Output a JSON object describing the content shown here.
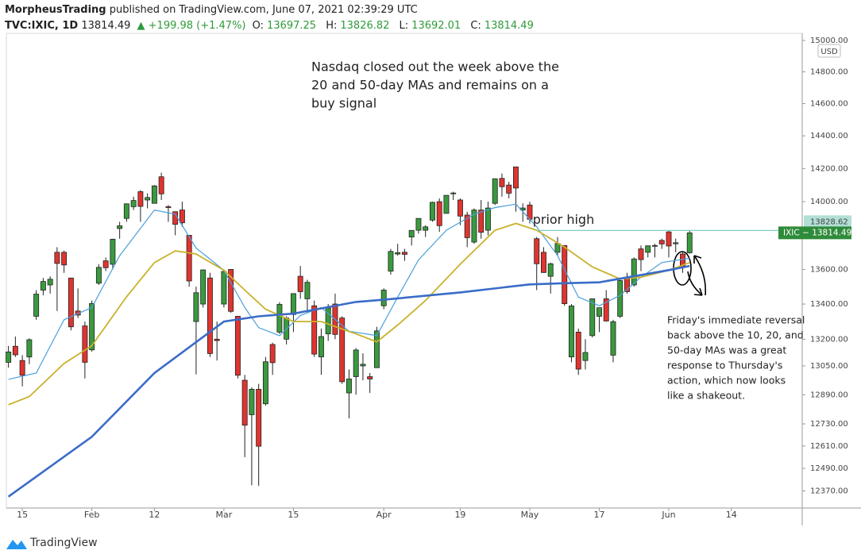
{
  "header": {
    "author": "MorpheusTrading",
    "published": "published on TradingView.com, June 07, 2021 02:39:29 UTC",
    "symbol": "TVC:IXIC, 1D",
    "last": "13814.49",
    "change": "▲ +199.98 (+1.47%)",
    "open_key": "O:",
    "open_val": "13697.25",
    "high_key": "H:",
    "high_val": "13826.82",
    "low_key": "L:",
    "low_val": "13692.01",
    "close_key": "C:",
    "close_val": "13814.49"
  },
  "footer": {
    "brand": "TradingView"
  },
  "chart_data": {
    "type": "candlestick",
    "currency": "USD",
    "log_scale": true,
    "grid": false,
    "up_color": "#3a9a3e",
    "down_color": "#e0342f",
    "xlim": [
      -0.3,
      114.2
    ],
    "ylim": [
      12280,
      15056
    ],
    "xticks": [
      {
        "value": 2,
        "label": "15"
      },
      {
        "value": 12,
        "label": "Feb"
      },
      {
        "value": 21,
        "label": "12"
      },
      {
        "value": 31,
        "label": "Mar"
      },
      {
        "value": 41,
        "label": "15"
      },
      {
        "value": 54,
        "label": "Apr"
      },
      {
        "value": 65,
        "label": "19"
      },
      {
        "value": 75,
        "label": "May"
      },
      {
        "value": 85,
        "label": "17"
      },
      {
        "value": 95,
        "label": "Jun"
      },
      {
        "value": 104,
        "label": "14"
      }
    ],
    "yticks": [
      {
        "value": 15000,
        "label": "15000.00"
      },
      {
        "value": 14800,
        "label": "14800.00"
      },
      {
        "value": 14600,
        "label": "14600.00"
      },
      {
        "value": 14400,
        "label": "14400.00"
      },
      {
        "value": 14200,
        "label": "14200.00"
      },
      {
        "value": 14000,
        "label": "14000.00"
      },
      {
        "value": 13600,
        "label": "13600.00"
      },
      {
        "value": 13400,
        "label": "13400.00"
      },
      {
        "value": 13200,
        "label": "13200.00"
      },
      {
        "value": 13050,
        "label": "13050.00"
      },
      {
        "value": 12890,
        "label": "12890.00"
      },
      {
        "value": 12730,
        "label": "12730.00"
      },
      {
        "value": 12610,
        "label": "12610.00"
      },
      {
        "value": 12490,
        "label": "12490.00"
      },
      {
        "value": 12370,
        "label": "12370.00"
      }
    ],
    "open": [
      13070,
      13160,
      13080,
      13100,
      13330,
      13480,
      13510,
      13700,
      13700,
      13550,
      13360,
      13275,
      13140,
      13520,
      13650,
      13630,
      13840,
      13900,
      13970,
      14060,
      14010,
      13990,
      14150,
      13970,
      13940,
      13950,
      13800,
      13300,
      13400,
      13550,
      13200,
      13400,
      13600,
      13330,
      12970,
      12780,
      12920,
      12840,
      13170,
      13240,
      13200,
      13340,
      13560,
      13430,
      13390,
      13100,
      13230,
      13400,
      13320,
      12900,
      12990,
      13050,
      12990,
      13040,
      13390,
      13590,
      13690,
      13700,
      13790,
      13830,
      13830,
      13890,
      14000,
      13930,
      14050,
      14010,
      13920,
      13760,
      13950,
      13830,
      13990,
      14140,
      14100,
      14210,
      13950,
      13980,
      13780,
      13700,
      13560,
      13700,
      13740,
      13100,
      13240,
      13080,
      13220,
      13330,
      13430,
      13110,
      13330,
      13550,
      13510,
      13720,
      13700,
      13740,
      13770,
      13820,
      13750,
      13690,
      13697.25
    ],
    "high": [
      13162,
      13215,
      13110,
      13205,
      13480,
      13550,
      13560,
      13730,
      13710,
      13550,
      13490,
      13300,
      13420,
      13630,
      13670,
      13780,
      13880,
      13990,
      14030,
      14070,
      14050,
      14100,
      14175,
      13980,
      13940,
      14000,
      13800,
      13500,
      13600,
      13580,
      13300,
      13600,
      13600,
      13330,
      13000,
      12930,
      12950,
      13100,
      13180,
      13410,
      13330,
      13460,
      13620,
      13540,
      13420,
      13260,
      13400,
      13460,
      13330,
      13030,
      13150,
      13120,
      13010,
      13270,
      13490,
      13720,
      13750,
      13720,
      13830,
      13900,
      13860,
      14000,
      14020,
      14040,
      14060,
      14020,
      13940,
      13960,
      14010,
      14000,
      14140,
      14170,
      14120,
      14211,
      13990,
      14000,
      13790,
      13730,
      13640,
      13790,
      13740,
      13400,
      13260,
      13200,
      13430,
      13380,
      13480,
      13310,
      13550,
      13580,
      13670,
      13740,
      13740,
      13750,
      13780,
      13830,
      13780,
      13700,
      13826.82
    ],
    "low": [
      13040,
      13100,
      12936,
      13060,
      13310,
      13450,
      13460,
      13360,
      13580,
      13250,
      13320,
      12980,
      13130,
      13510,
      13590,
      13600,
      13780,
      13880,
      13950,
      13880,
      13960,
      13990,
      14010,
      13880,
      13800,
      13850,
      13500,
      13003,
      13380,
      13100,
      13080,
      13380,
      13350,
      12980,
      12550,
      12400,
      12397,
      12830,
      13000,
      13230,
      13170,
      13240,
      13430,
      13350,
      13100,
      13000,
      13190,
      13200,
      12950,
      12760,
      12890,
      12970,
      12900,
      13040,
      13370,
      13570,
      13680,
      13650,
      13740,
      13810,
      13790,
      13880,
      13820,
      13930,
      14010,
      13860,
      13730,
      13750,
      13780,
      13800,
      13980,
      14030,
      14020,
      13940,
      13880,
      13870,
      13480,
      13580,
      13460,
      13680,
      13390,
      13070,
      13000,
      13030,
      13210,
      13240,
      13300,
      13070,
      13320,
      13460,
      13500,
      13590,
      13670,
      13670,
      13720,
      13670,
      13700,
      13580,
      13692.01
    ],
    "close": [
      13128,
      13112,
      12998,
      13197,
      13457,
      13530,
      13543,
      13635,
      13626,
      13270,
      13337,
      13070,
      13403,
      13612,
      13610,
      13777,
      13856,
      13987,
      14007,
      13972,
      14025,
      14095,
      14047,
      13965,
      13865,
      13874,
      13533,
      13465,
      13597,
      13119,
      13192,
      13588,
      13358,
      12998,
      12723,
      12920,
      12609,
      13073,
      13068,
      13398,
      13320,
      13460,
      13471,
      13525,
      13116,
      13215,
      13377,
      13227,
      12962,
      12977,
      13139,
      13059,
      12977,
      13247,
      13480,
      13705,
      13698,
      13688,
      13829,
      13900,
      13850,
      13996,
      13857,
      14038,
      14052,
      13914,
      13786,
      13950,
      13818,
      13962,
      14138,
      14090,
      14051,
      14082,
      13962,
      13895,
      13633,
      13582,
      13633,
      13752,
      13402,
      13389,
      13032,
      13125,
      13430,
      13379,
      13303,
      13299,
      13535,
      13471,
      13661,
      13657,
      13738,
      13736,
      13749,
      13737,
      13756,
      13615,
      13814.49
    ],
    "series": [
      {
        "color": "#4a9fdc",
        "x": [
          0,
          4,
          8,
          12,
          16,
          21,
          24,
          27,
          31,
          34,
          36,
          39,
          42,
          45,
          49,
          53,
          56,
          59,
          63,
          67,
          70,
          73,
          76,
          79,
          82,
          85,
          88,
          91,
          94,
          98
        ],
        "values": [
          12975,
          13010,
          13310,
          13380,
          13680,
          13950,
          13925,
          13725,
          13595,
          13380,
          13265,
          13220,
          13335,
          13380,
          13245,
          13220,
          13440,
          13655,
          13830,
          13925,
          13965,
          13985,
          13850,
          13680,
          13440,
          13390,
          13450,
          13555,
          13640,
          13665
        ]
      },
      {
        "color": "#c9b22c",
        "x": [
          0,
          3,
          8,
          12,
          17,
          21,
          24,
          27,
          31,
          34,
          37,
          41,
          45,
          50,
          53,
          56,
          60,
          65,
          70,
          73,
          76,
          80,
          84,
          88,
          91,
          95,
          98
        ],
        "values": [
          12835,
          12880,
          13063,
          13163,
          13442,
          13640,
          13708,
          13690,
          13595,
          13480,
          13370,
          13300,
          13300,
          13230,
          13185,
          13280,
          13420,
          13630,
          13830,
          13870,
          13830,
          13730,
          13615,
          13545,
          13555,
          13595,
          13640
        ]
      },
      {
        "color": "#3a6cc8",
        "x": [
          0,
          12,
          21,
          31,
          36,
          41,
          50,
          54,
          65,
          75,
          80,
          85,
          95,
          98
        ],
        "values": [
          12340,
          12660,
          13010,
          13300,
          13330,
          13345,
          13412,
          13425,
          13467,
          13513,
          13520,
          13525,
          13596,
          13620
        ]
      }
    ],
    "prior_high": {
      "value": 13828.62,
      "label": "13828.62",
      "text": "prior high",
      "from": 76
    },
    "last_label": "IXIC − 13814.49",
    "annotations": [
      {
        "lines": [
          "Nasdaq closed out the week above the",
          "20 and 50-day MAs and remains on a",
          "buy signal"
        ]
      },
      {
        "lines": [
          "Friday's immediate reversal",
          "back above the 10, 20, and",
          "50-day MAs was a great",
          "response to Thursday's",
          "action, which now looks",
          "like a shakeout."
        ]
      }
    ]
  }
}
